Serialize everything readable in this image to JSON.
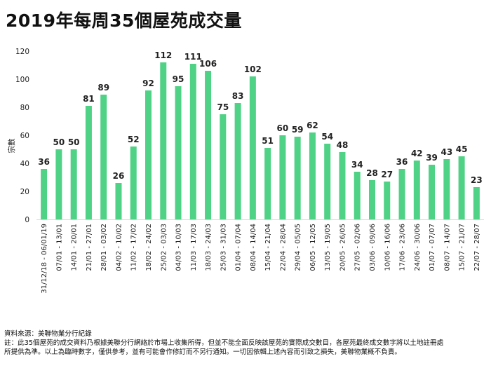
{
  "chart_data": {
    "type": "bar",
    "title": "2019年每周35個屋苑成交量",
    "ylabel": "宗數",
    "xlabel": "",
    "ylim": [
      0,
      120
    ],
    "yticks": [
      0,
      20,
      40,
      60,
      80,
      100,
      120
    ],
    "categories": [
      "31/12/18 - 06/01/19",
      "07/01 - 13/01",
      "14/01 - 20/01",
      "21/01 - 27/01",
      "28/01 - 03/02",
      "04/02 - 10/02",
      "11/02 - 17/02",
      "18/02 - 24/02",
      "25/02 - 03/03",
      "04/03 - 10/03",
      "11/03 - 17/03",
      "18/03 - 24/03",
      "25/03 - 31/03",
      "01/04 - 07/04",
      "08/04 - 14/04",
      "15/04 - 21/04",
      "22/04 - 28/04",
      "29/04 - 05/05",
      "06/05 - 12/05",
      "13/05 - 19/05",
      "20/05 - 26/05",
      "27/05 - 02/06",
      "03/06 - 09/06",
      "10/06 - 16/06",
      "17/06 - 23/06",
      "24/06 - 30/06",
      "01/07 - 07/07",
      "08/07 - 14/07",
      "15/07 - 21/07",
      "22/07 - 28/07"
    ],
    "values": [
      36,
      50,
      50,
      81,
      89,
      26,
      52,
      92,
      112,
      95,
      111,
      106,
      75,
      83,
      102,
      51,
      60,
      59,
      62,
      54,
      48,
      34,
      28,
      27,
      36,
      42,
      39,
      43,
      45,
      23
    ],
    "color": "#4fd285",
    "grid": false
  },
  "footer": {
    "source": "資料來源：美聯物業分行紀錄",
    "note_line1": "註：此35個屋苑的成交資料乃根據美聯分行網絡於市場上收集所得，但並不能全面反映該屋苑的實際成交數目，各屋苑最終成交數字將以土地註冊處",
    "note_line2": "所提供為準。以上為臨時數字，僅供參考，並有可能會作修訂而不另行通知。一切因依輯上述內容而引致之損失，美聯物業概不負責。"
  }
}
